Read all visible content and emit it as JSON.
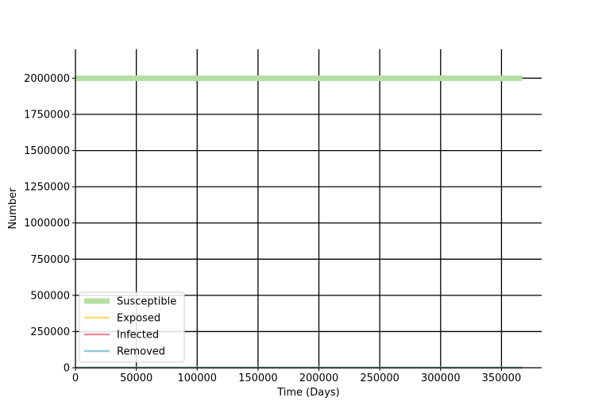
{
  "chart_data": {
    "type": "line",
    "title": "",
    "xlabel": "Time (Days)",
    "ylabel": "Number",
    "xlim": [
      0,
      383000
    ],
    "ylim": [
      0,
      2200000
    ],
    "xticks": [
      0,
      50000,
      100000,
      150000,
      200000,
      250000,
      300000,
      350000
    ],
    "yticks": [
      0,
      250000,
      500000,
      750000,
      1000000,
      1250000,
      1500000,
      1750000,
      2000000
    ],
    "grid": true,
    "legend_position": "lower-left",
    "series": [
      {
        "name": "Susceptible",
        "color": "#b7dea4",
        "x": [
          0,
          367000
        ],
        "y": [
          2000000,
          2000000
        ]
      },
      {
        "name": "Exposed",
        "color": "#fdd97c",
        "x": [
          0,
          367000
        ],
        "y": [
          0,
          0
        ]
      },
      {
        "name": "Infected",
        "color": "#f08aa2",
        "x": [
          0,
          367000
        ],
        "y": [
          0,
          0
        ]
      },
      {
        "name": "Removed",
        "color": "#8fcad3",
        "x": [
          0,
          367000
        ],
        "y": [
          0,
          0
        ]
      }
    ]
  }
}
